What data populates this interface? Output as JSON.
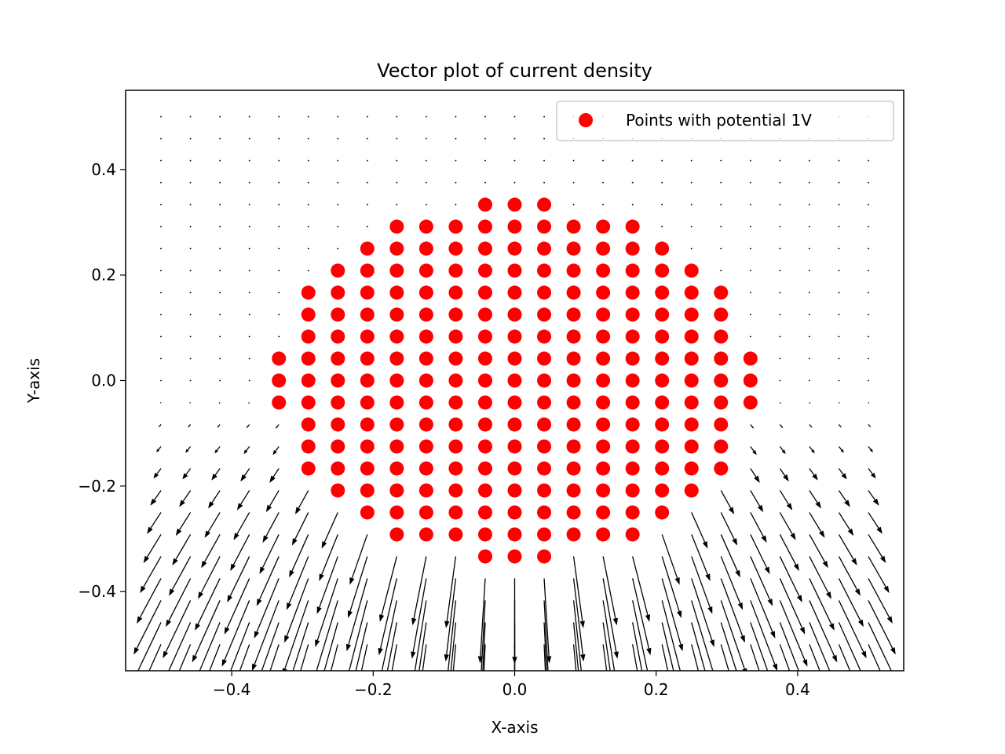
{
  "chart_data": {
    "type": "scatter",
    "title": "Vector plot of current density",
    "xlabel": "X-axis",
    "ylabel": "Y-axis",
    "xlim": [
      -0.55,
      0.55
    ],
    "ylim": [
      -0.55,
      0.55
    ],
    "xticks": [
      -0.4,
      -0.2,
      0.0,
      0.2,
      0.4
    ],
    "yticks": [
      -0.4,
      -0.2,
      0.0,
      0.2,
      0.4
    ],
    "xtick_labels": [
      "−0.4",
      "−0.2",
      "0.0",
      "0.2",
      "0.4"
    ],
    "ytick_labels": [
      "−0.4",
      "−0.2",
      "0.0",
      "0.2",
      "0.4"
    ],
    "legend": {
      "position": "upper right",
      "entries": [
        {
          "label": "Points with potential 1V",
          "color": "#ff0000",
          "marker": "circle"
        }
      ]
    },
    "series": [
      {
        "name": "Points with potential 1V",
        "kind": "scatter",
        "color": "#ff0000",
        "grid": {
          "x0": -0.5,
          "y0": -0.5,
          "step": 0.041667,
          "n": 25
        },
        "region": {
          "type": "disk",
          "center": [
            0,
            0
          ],
          "radius": 0.34
        }
      },
      {
        "kind": "quiver",
        "color": "#000000",
        "grid": {
          "x0": -0.5,
          "y0": -0.5,
          "step": 0.041667,
          "n": 25
        },
        "field": "current density flowing out of the 1V disk toward the grounded lower boundary; arrows strongest below the disk"
      }
    ]
  }
}
